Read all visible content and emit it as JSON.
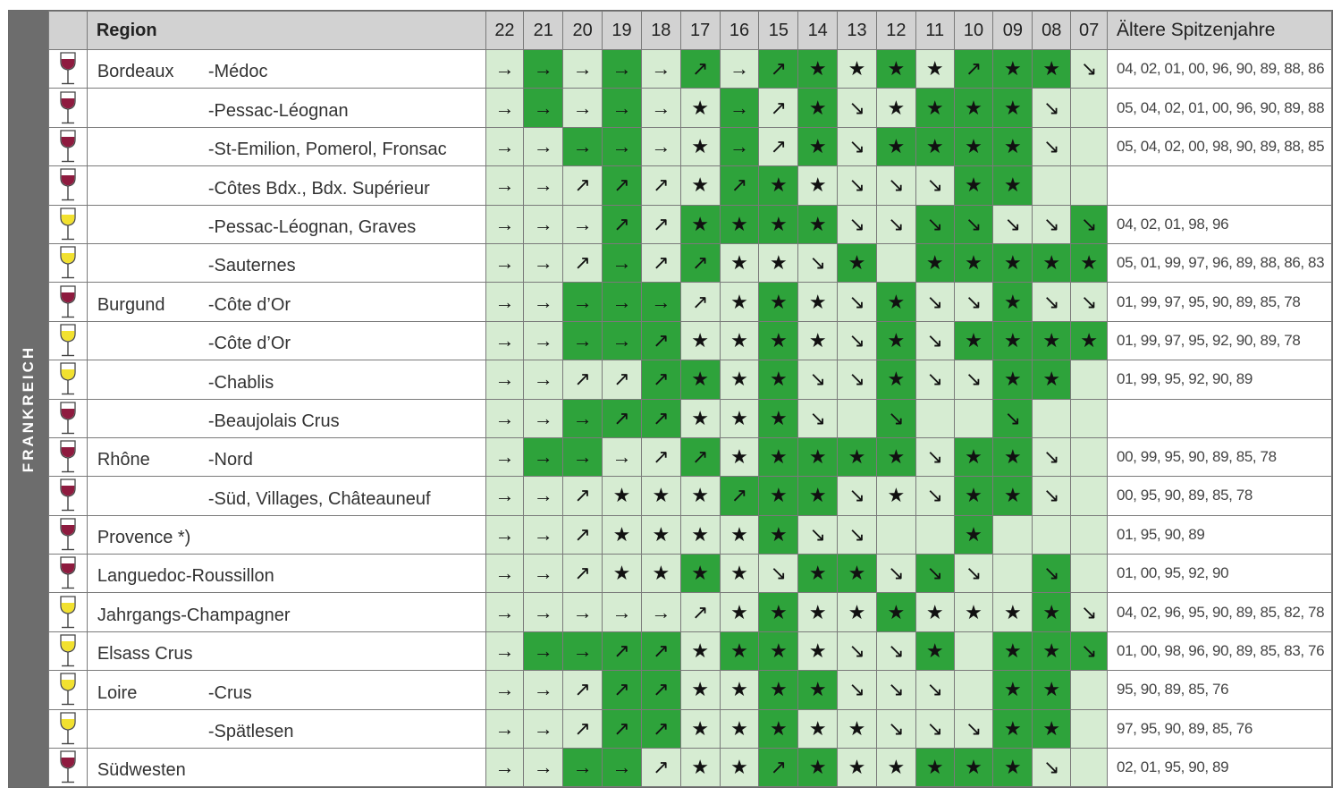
{
  "side_label": "FRANKREICH",
  "header": {
    "region": "Region",
    "years": [
      "22",
      "21",
      "20",
      "19",
      "18",
      "17",
      "16",
      "15",
      "14",
      "13",
      "12",
      "11",
      "10",
      "09",
      "08",
      "07"
    ],
    "older": "Ältere Spitzenjahre"
  },
  "colors": {
    "light_green": "#d6ecd2",
    "dark_green": "#2ea33b",
    "red_wine": "#8e1b3f",
    "white_wine": "#f2e12f",
    "header_gray": "#d2d2d2",
    "side_gray": "#6d6d6d"
  },
  "symbols": {
    "flat": "→",
    "rising": "↗",
    "falling": "↘",
    "star": "★"
  },
  "rows": [
    {
      "wine": "red",
      "region": "Bordeaux",
      "sub": "-Médoc",
      "cells": [
        "→",
        "→",
        "→",
        "→",
        "→",
        "↗",
        "→",
        "↗",
        "★",
        "★",
        "★",
        "★",
        "↗",
        "★",
        "★",
        "↘"
      ],
      "bg": [
        "L",
        "D",
        "L",
        "D",
        "L",
        "D",
        "L",
        "D",
        "D",
        "L",
        "D",
        "L",
        "D",
        "D",
        "D",
        "L"
      ],
      "older": "04, 02, 01, 00, 96, 90, 89, 88, 86"
    },
    {
      "wine": "red",
      "region": "",
      "sub": "-Pessac-Léognan",
      "cells": [
        "→",
        "→",
        "→",
        "→",
        "→",
        "★",
        "→",
        "↗",
        "★",
        "↘",
        "★",
        "★",
        "★",
        "★",
        "↘",
        ""
      ],
      "bg": [
        "L",
        "D",
        "L",
        "D",
        "L",
        "L",
        "D",
        "L",
        "D",
        "L",
        "L",
        "D",
        "D",
        "D",
        "L",
        "L"
      ],
      "older": "05, 04, 02, 01, 00, 96, 90, 89, 88"
    },
    {
      "wine": "red",
      "region": "",
      "sub": "-St-Emilion, Pomerol, Fronsac",
      "cells": [
        "→",
        "→",
        "→",
        "→",
        "→",
        "★",
        "→",
        "↗",
        "★",
        "↘",
        "★",
        "★",
        "★",
        "★",
        "↘",
        ""
      ],
      "bg": [
        "L",
        "L",
        "D",
        "D",
        "L",
        "L",
        "D",
        "L",
        "D",
        "L",
        "D",
        "D",
        "D",
        "D",
        "L",
        "L"
      ],
      "older": "05, 04, 02, 00, 98, 90, 89, 88, 85"
    },
    {
      "wine": "red",
      "region": "",
      "sub": "-Côtes Bdx., Bdx. Supérieur",
      "cells": [
        "→",
        "→",
        "↗",
        "↗",
        "↗",
        "★",
        "↗",
        "★",
        "★",
        "↘",
        "↘",
        "↘",
        "★",
        "★",
        "",
        ""
      ],
      "bg": [
        "L",
        "L",
        "L",
        "D",
        "L",
        "L",
        "D",
        "D",
        "L",
        "L",
        "L",
        "L",
        "D",
        "D",
        "L",
        "L"
      ],
      "older": ""
    },
    {
      "wine": "white",
      "region": "",
      "sub": "-Pessac-Léognan, Graves",
      "cells": [
        "→",
        "→",
        "→",
        "↗",
        "↗",
        "★",
        "★",
        "★",
        "★",
        "↘",
        "↘",
        "↘",
        "↘",
        "↘",
        "↘",
        "↘"
      ],
      "bg": [
        "L",
        "L",
        "L",
        "D",
        "L",
        "D",
        "D",
        "D",
        "D",
        "L",
        "L",
        "D",
        "D",
        "L",
        "L",
        "D"
      ],
      "older": "04, 02, 01, 98, 96"
    },
    {
      "wine": "white",
      "region": "",
      "sub": "-Sauternes",
      "cells": [
        "→",
        "→",
        "↗",
        "→",
        "↗",
        "↗",
        "★",
        "★",
        "↘",
        "★",
        "",
        "★",
        "★",
        "★",
        "★",
        "★"
      ],
      "bg": [
        "L",
        "L",
        "L",
        "D",
        "L",
        "D",
        "L",
        "L",
        "L",
        "D",
        "L",
        "D",
        "D",
        "D",
        "D",
        "D"
      ],
      "older": "05, 01, 99, 97, 96, 89, 88, 86, 83"
    },
    {
      "wine": "red",
      "region": "Burgund",
      "sub": "-Côte d’Or",
      "cells": [
        "→",
        "→",
        "→",
        "→",
        "→",
        "↗",
        "★",
        "★",
        "★",
        "↘",
        "★",
        "↘",
        "↘",
        "★",
        "↘",
        "↘"
      ],
      "bg": [
        "L",
        "L",
        "D",
        "D",
        "D",
        "L",
        "L",
        "D",
        "L",
        "L",
        "D",
        "L",
        "L",
        "D",
        "L",
        "L"
      ],
      "older": "01, 99, 97, 95, 90, 89, 85, 78"
    },
    {
      "wine": "white",
      "region": "",
      "sub": "-Côte d’Or",
      "cells": [
        "→",
        "→",
        "→",
        "→",
        "↗",
        "★",
        "★",
        "★",
        "★",
        "↘",
        "★",
        "↘",
        "★",
        "★",
        "★",
        "★"
      ],
      "bg": [
        "L",
        "L",
        "D",
        "D",
        "D",
        "L",
        "L",
        "D",
        "L",
        "L",
        "D",
        "L",
        "D",
        "D",
        "D",
        "D"
      ],
      "older": "01, 99, 97, 95, 92, 90, 89, 78"
    },
    {
      "wine": "white",
      "region": "",
      "sub": "-Chablis",
      "cells": [
        "→",
        "→",
        "↗",
        "↗",
        "↗",
        "★",
        "★",
        "★",
        "↘",
        "↘",
        "★",
        "↘",
        "↘",
        "★",
        "★",
        ""
      ],
      "bg": [
        "L",
        "L",
        "L",
        "L",
        "D",
        "D",
        "L",
        "D",
        "L",
        "L",
        "D",
        "L",
        "L",
        "D",
        "D",
        "L"
      ],
      "older": "01, 99, 95, 92, 90, 89"
    },
    {
      "wine": "red",
      "region": "",
      "sub": "-Beaujolais Crus",
      "cells": [
        "→",
        "→",
        "→",
        "↗",
        "↗",
        "★",
        "★",
        "★",
        "↘",
        "",
        "↘",
        "",
        "",
        "↘",
        "",
        ""
      ],
      "bg": [
        "L",
        "L",
        "D",
        "D",
        "D",
        "L",
        "L",
        "D",
        "L",
        "L",
        "D",
        "L",
        "L",
        "D",
        "L",
        "L"
      ],
      "older": ""
    },
    {
      "wine": "red",
      "region": "Rhône",
      "sub": "-Nord",
      "cells": [
        "→",
        "→",
        "→",
        "→",
        "↗",
        "↗",
        "★",
        "★",
        "★",
        "★",
        "★",
        "↘",
        "★",
        "★",
        "↘",
        ""
      ],
      "bg": [
        "L",
        "D",
        "D",
        "L",
        "L",
        "D",
        "L",
        "D",
        "D",
        "D",
        "D",
        "L",
        "D",
        "D",
        "L",
        "L"
      ],
      "older": "00, 99, 95, 90, 89, 85, 78"
    },
    {
      "wine": "red",
      "region": "",
      "sub": "-Süd, Villages, Châteauneuf",
      "cells": [
        "→",
        "→",
        "↗",
        "★",
        "★",
        "★",
        "↗",
        "★",
        "★",
        "↘",
        "★",
        "↘",
        "★",
        "★",
        "↘",
        ""
      ],
      "bg": [
        "L",
        "L",
        "L",
        "L",
        "L",
        "L",
        "D",
        "D",
        "D",
        "L",
        "L",
        "L",
        "D",
        "D",
        "L",
        "L"
      ],
      "older": "00, 95, 90, 89, 85, 78"
    },
    {
      "wine": "red",
      "region": "Provence *)",
      "sub": "",
      "cells": [
        "→",
        "→",
        "↗",
        "★",
        "★",
        "★",
        "★",
        "★",
        "↘",
        "↘",
        "",
        "",
        "★",
        "",
        "",
        ""
      ],
      "bg": [
        "L",
        "L",
        "L",
        "L",
        "L",
        "L",
        "L",
        "D",
        "L",
        "L",
        "L",
        "L",
        "D",
        "L",
        "L",
        "L"
      ],
      "older": "01, 95, 90, 89"
    },
    {
      "wine": "red",
      "region": "Languedoc-Roussillon",
      "sub": "",
      "cells": [
        "→",
        "→",
        "↗",
        "★",
        "★",
        "★",
        "★",
        "↘",
        "★",
        "★",
        "↘",
        "↘",
        "↘",
        "",
        "↘",
        ""
      ],
      "bg": [
        "L",
        "L",
        "L",
        "L",
        "L",
        "D",
        "L",
        "L",
        "D",
        "D",
        "L",
        "D",
        "L",
        "L",
        "D",
        "L"
      ],
      "older": "01, 00, 95, 92, 90"
    },
    {
      "wine": "white",
      "region": "Jahrgangs-Champagner",
      "sub": "",
      "cells": [
        "→",
        "→",
        "→",
        "→",
        "→",
        "↗",
        "★",
        "★",
        "★",
        "★",
        "★",
        "★",
        "★",
        "★",
        "★",
        "↘"
      ],
      "bg": [
        "L",
        "L",
        "L",
        "L",
        "L",
        "L",
        "L",
        "D",
        "L",
        "L",
        "D",
        "L",
        "L",
        "L",
        "D",
        "L"
      ],
      "older": "04, 02, 96, 95, 90, 89, 85, 82, 78"
    },
    {
      "wine": "white",
      "region": "Elsass Crus",
      "sub": "",
      "cells": [
        "→",
        "→",
        "→",
        "↗",
        "↗",
        "★",
        "★",
        "★",
        "★",
        "↘",
        "↘",
        "★",
        "",
        "★",
        "★",
        "↘"
      ],
      "bg": [
        "L",
        "D",
        "D",
        "D",
        "D",
        "L",
        "D",
        "D",
        "L",
        "L",
        "L",
        "D",
        "L",
        "D",
        "D",
        "D"
      ],
      "older": "01, 00, 98, 96, 90, 89, 85, 83, 76"
    },
    {
      "wine": "white",
      "region": "Loire",
      "sub": "-Crus",
      "cells": [
        "→",
        "→",
        "↗",
        "↗",
        "↗",
        "★",
        "★",
        "★",
        "★",
        "↘",
        "↘",
        "↘",
        "",
        "★",
        "★",
        ""
      ],
      "bg": [
        "L",
        "L",
        "L",
        "D",
        "D",
        "L",
        "L",
        "D",
        "D",
        "L",
        "L",
        "L",
        "L",
        "D",
        "D",
        "L"
      ],
      "older": "95, 90, 89, 85, 76"
    },
    {
      "wine": "white",
      "region": "",
      "sub": "-Spätlesen",
      "cells": [
        "→",
        "→",
        "↗",
        "↗",
        "↗",
        "★",
        "★",
        "★",
        "★",
        "★",
        "↘",
        "↘",
        "↘",
        "★",
        "★",
        ""
      ],
      "bg": [
        "L",
        "L",
        "L",
        "D",
        "D",
        "L",
        "L",
        "D",
        "L",
        "L",
        "L",
        "L",
        "L",
        "D",
        "D",
        "L"
      ],
      "older": "97, 95, 90, 89, 85, 76"
    },
    {
      "wine": "red",
      "region": "Südwesten",
      "sub": "",
      "cells": [
        "→",
        "→",
        "→",
        "→",
        "↗",
        "★",
        "★",
        "↗",
        "★",
        "★",
        "★",
        "★",
        "★",
        "★",
        "↘",
        ""
      ],
      "bg": [
        "L",
        "L",
        "D",
        "D",
        "L",
        "L",
        "L",
        "D",
        "D",
        "L",
        "L",
        "D",
        "D",
        "D",
        "L",
        "L"
      ],
      "older": "02, 01, 95, 90, 89"
    }
  ]
}
